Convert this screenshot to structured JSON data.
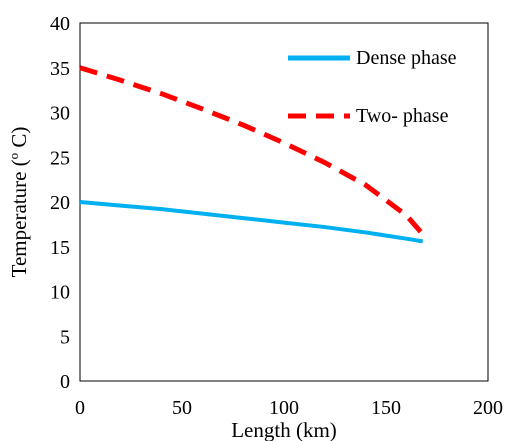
{
  "chart_data": {
    "type": "line",
    "title": "",
    "xlabel": "Length (km)",
    "ylabel_main": "Temperature (",
    "ylabel_sup": "o",
    "ylabel_tail": " C)",
    "xlim": [
      0,
      200
    ],
    "ylim": [
      0,
      40
    ],
    "xticks": [
      0,
      50,
      100,
      150,
      200
    ],
    "yticks": [
      0,
      5,
      10,
      15,
      20,
      25,
      30,
      35,
      40
    ],
    "grid": false,
    "legend_position": "top-right",
    "series": [
      {
        "name": "Dense phase",
        "color": "#00b0f0",
        "style": "solid",
        "x": [
          0,
          20,
          40,
          60,
          80,
          100,
          120,
          140,
          160,
          168
        ],
        "y": [
          20.0,
          19.6,
          19.2,
          18.7,
          18.2,
          17.7,
          17.2,
          16.6,
          15.9,
          15.6
        ]
      },
      {
        "name": "Two- phase",
        "color": "#ff0000",
        "style": "dashed",
        "x": [
          0,
          20,
          40,
          60,
          80,
          100,
          120,
          140,
          160,
          168
        ],
        "y": [
          35.0,
          33.6,
          32.1,
          30.4,
          28.6,
          26.6,
          24.4,
          21.9,
          18.5,
          16.4
        ]
      }
    ]
  }
}
